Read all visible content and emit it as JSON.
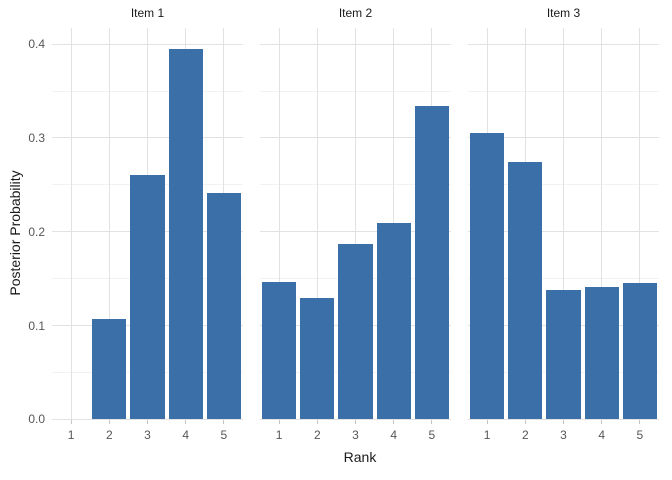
{
  "chart_data": {
    "type": "bar",
    "title": "",
    "xlabel": "Rank",
    "ylabel": "Posterior Probability",
    "categories": [
      "1",
      "2",
      "3",
      "4",
      "5"
    ],
    "facets": [
      {
        "label": "Item 1",
        "values": [
          0,
          0.107,
          0.26,
          0.395,
          0.241
        ]
      },
      {
        "label": "Item 2",
        "values": [
          0.146,
          0.129,
          0.187,
          0.209,
          0.334
        ]
      },
      {
        "label": "Item 3",
        "values": [
          0.305,
          0.274,
          0.138,
          0.141,
          0.145
        ]
      }
    ],
    "y_major_ticks": [
      0,
      0.1,
      0.2,
      0.3,
      0.4
    ],
    "y_tick_labels": [
      "0.0",
      "0.1",
      "0.2",
      "0.3",
      "0.4"
    ],
    "y_minor_ticks": [
      0.05,
      0.15,
      0.25,
      0.35
    ],
    "ylim": [
      0,
      0.417
    ],
    "grid": "on",
    "legend": "none",
    "bar_color": "#3A6FA8"
  },
  "colors": {
    "bar": "#3A6FA8",
    "grid_major": "#e2e2e2",
    "grid_minor": "#f2f2f2",
    "axis_tick": "#c6c6c6",
    "tick_text": "#565656",
    "title_text": "#1a1a1a",
    "background": "#ffffff"
  }
}
